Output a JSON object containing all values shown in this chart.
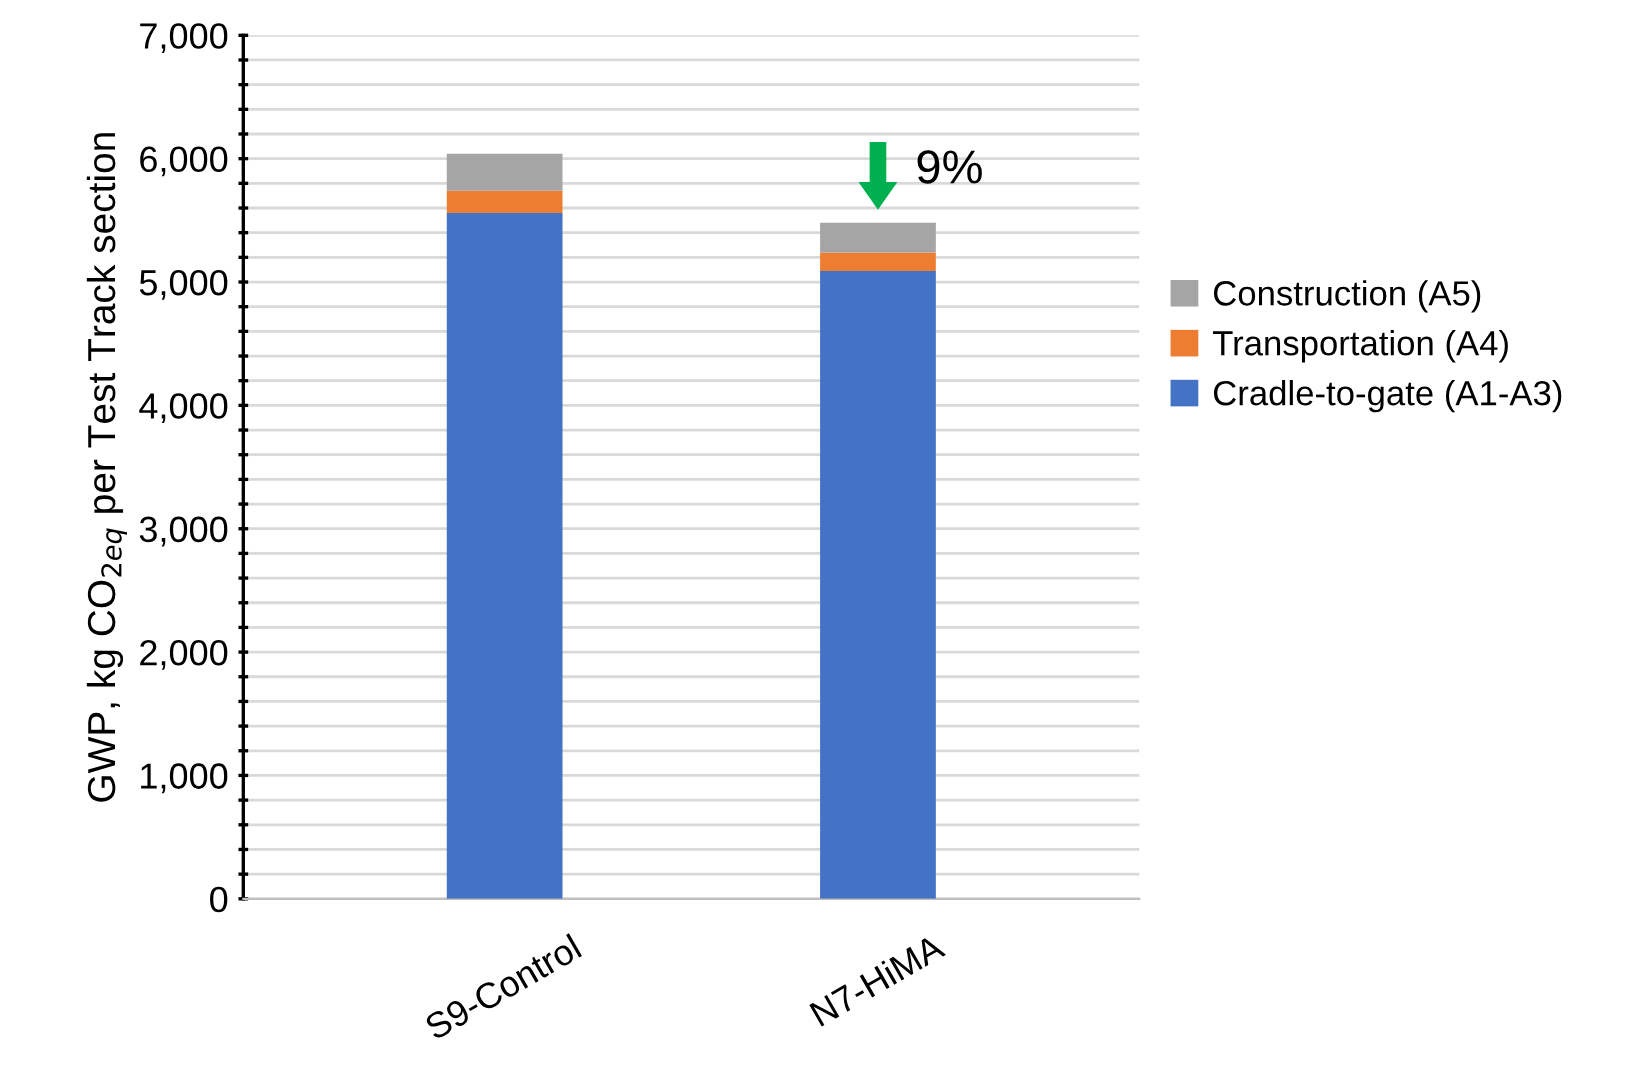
{
  "chart_data": {
    "type": "bar",
    "stacked": true,
    "ylabel": "GWP, kg CO$_{2eq}$ per Test Track section",
    "categories": [
      "S9-Control",
      "N7-HiMA"
    ],
    "series": [
      {
        "name": "Cradle-to-gate (A1-A3)",
        "color": "#4472c4",
        "values": [
          5560,
          5090
        ]
      },
      {
        "name": "Transportation (A4)",
        "color": "#ed7d31",
        "values": [
          180,
          150
        ]
      },
      {
        "name": "Construction (A5)",
        "color": "#a5a5a5",
        "values": [
          300,
          240
        ]
      }
    ],
    "ylim": [
      0,
      7000
    ],
    "yticks": [
      0,
      {
        "value": 200,
        "label": null
      },
      {
        "value": 400,
        "label": null
      },
      {
        "value": 600,
        "label": null
      },
      {
        "value": 800,
        "label": null
      },
      {
        "value": 1000,
        "label": "1,000"
      },
      {
        "value": 1200,
        "label": null
      },
      {
        "value": 1400,
        "label": null
      },
      {
        "value": 1600,
        "label": null
      },
      {
        "value": 1800,
        "label": null
      },
      {
        "value": 2000,
        "label": "2,000"
      },
      {
        "value": 2200,
        "label": null
      },
      {
        "value": 2400,
        "label": null
      },
      {
        "value": 2600,
        "label": null
      },
      {
        "value": 2800,
        "label": null
      },
      {
        "value": 3000,
        "label": "3,000"
      },
      {
        "value": 3200,
        "label": null
      },
      {
        "value": 3400,
        "label": null
      },
      {
        "value": 3600,
        "label": null
      },
      {
        "value": 3800,
        "label": null
      },
      {
        "value": 4000,
        "label": "4,000"
      },
      {
        "value": 4200,
        "label": null
      },
      {
        "value": 4400,
        "label": null
      },
      {
        "value": 4600,
        "label": null
      },
      {
        "value": 4800,
        "label": null
      },
      {
        "value": 5000,
        "label": "5,000"
      },
      {
        "value": 5200,
        "label": null
      },
      {
        "value": 5400,
        "label": null
      },
      {
        "value": 5600,
        "label": null
      },
      {
        "value": 5800,
        "label": null
      },
      {
        "value": 6000,
        "label": "6,000"
      },
      {
        "value": 6200,
        "label": null
      },
      {
        "value": 6400,
        "label": null
      },
      {
        "value": 6600,
        "label": null
      },
      {
        "value": 6800,
        "label": null
      },
      {
        "value": 7000,
        "label": "7,000"
      }
    ],
    "grid": "y",
    "legend": "right",
    "annotations": [
      "9%"
    ]
  }
}
